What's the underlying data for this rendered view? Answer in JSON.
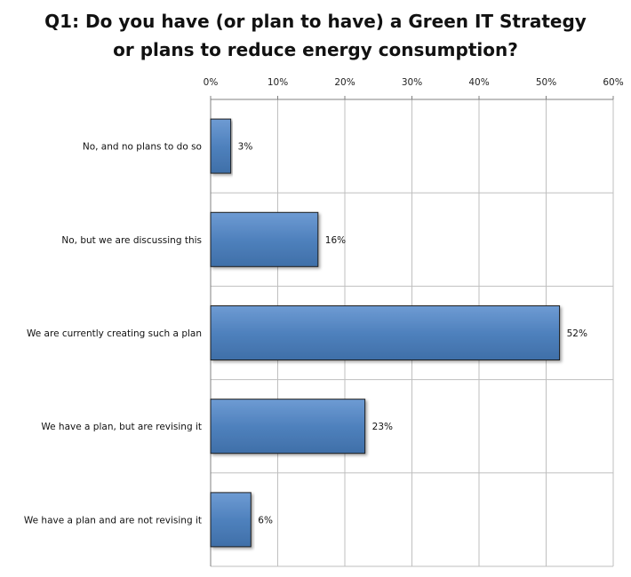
{
  "chart_data": {
    "type": "bar",
    "orientation": "horizontal",
    "title_lines": [
      "Q1: Do you have (or plan to have) a Green IT Strategy",
      "or plans to reduce energy consumption?"
    ],
    "categories": [
      "No, and no plans to do so",
      "No, but we are discussing this",
      "We are currently creating such a plan",
      "We have a plan, but are revising it",
      "We have a plan and are not revising it"
    ],
    "values": [
      3,
      16,
      52,
      23,
      6
    ],
    "data_labels": [
      "3%",
      "16%",
      "52%",
      "23%",
      "6%"
    ],
    "xlim": [
      0,
      60
    ],
    "x_ticks": [
      0,
      10,
      20,
      30,
      40,
      50,
      60
    ],
    "x_tick_labels": [
      "0%",
      "10%",
      "20%",
      "30%",
      "40%",
      "50%",
      "60%"
    ],
    "x_axis_position": "top",
    "grid": true,
    "legend": false,
    "bar_color": "#4F81BD",
    "bar_edge_color": "#1F1F1F",
    "grid_color": "#BFBFBF"
  }
}
